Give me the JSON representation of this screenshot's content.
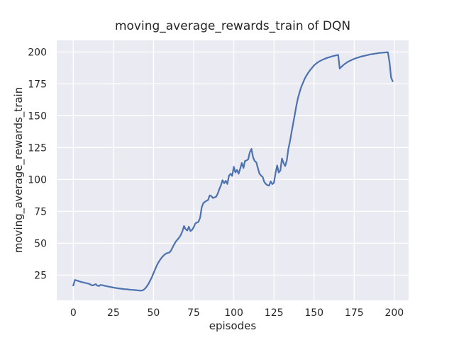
{
  "chart_data": {
    "type": "line",
    "title": "moving_average_rewards_train of DQN",
    "xlabel": "episodes",
    "ylabel": "moving_average_rewards_train",
    "xlim": [
      -10.3,
      208.9
    ],
    "ylim": [
      5.2,
      209.1
    ],
    "xticks": [
      0,
      25,
      50,
      75,
      100,
      125,
      150,
      175,
      200
    ],
    "yticks": [
      25,
      50,
      75,
      100,
      125,
      150,
      175,
      200
    ],
    "grid": true,
    "legend": false,
    "style": {
      "figure_bg": "#ffffff",
      "axes_bg": "#eaeaf2",
      "grid_color": "#ffffff",
      "line_color": "#4c72b0",
      "text_color": "#262626"
    },
    "series": [
      {
        "name": "moving_average_rewards_train",
        "points": [
          [
            0,
            16.8
          ],
          [
            1,
            21.2
          ],
          [
            2,
            20.8
          ],
          [
            3,
            20.4
          ],
          [
            4,
            20.0
          ],
          [
            5,
            19.6
          ],
          [
            6,
            19.3
          ],
          [
            7,
            19.0
          ],
          [
            8,
            18.7
          ],
          [
            9,
            18.4
          ],
          [
            10,
            18.1
          ],
          [
            11,
            17.3
          ],
          [
            12,
            16.9
          ],
          [
            13,
            17.3
          ],
          [
            14,
            17.9
          ],
          [
            15,
            16.7
          ],
          [
            16,
            16.4
          ],
          [
            17,
            17.3
          ],
          [
            18,
            17.1
          ],
          [
            19,
            16.8
          ],
          [
            20,
            16.5
          ],
          [
            21,
            16.2
          ],
          [
            22,
            16.0
          ],
          [
            23,
            15.7
          ],
          [
            24,
            15.5
          ],
          [
            25,
            15.2
          ],
          [
            26,
            15.0
          ],
          [
            27,
            14.8
          ],
          [
            28,
            14.6
          ],
          [
            29,
            14.4
          ],
          [
            30,
            14.3
          ],
          [
            31,
            14.1
          ],
          [
            32,
            14.0
          ],
          [
            33,
            13.9
          ],
          [
            34,
            13.8
          ],
          [
            35,
            13.6
          ],
          [
            36,
            13.5
          ],
          [
            37,
            13.4
          ],
          [
            38,
            13.3
          ],
          [
            39,
            13.2
          ],
          [
            40,
            13.1
          ],
          [
            41,
            12.9
          ],
          [
            42,
            12.8
          ],
          [
            43,
            13.0
          ],
          [
            44,
            13.6
          ],
          [
            45,
            14.8
          ],
          [
            46,
            16.5
          ],
          [
            47,
            18.5
          ],
          [
            48,
            21.0
          ],
          [
            49,
            23.5
          ],
          [
            50,
            26.5
          ],
          [
            51,
            29.5
          ],
          [
            52,
            32.5
          ],
          [
            53,
            34.8
          ],
          [
            54,
            36.8
          ],
          [
            55,
            38.6
          ],
          [
            56,
            40.0
          ],
          [
            57,
            41.2
          ],
          [
            58,
            42.0
          ],
          [
            59,
            42.5
          ],
          [
            60,
            42.8
          ],
          [
            61,
            44.5
          ],
          [
            62,
            47.0
          ],
          [
            63,
            49.5
          ],
          [
            64,
            51.5
          ],
          [
            65,
            53.0
          ],
          [
            66,
            54.5
          ],
          [
            67,
            56.5
          ],
          [
            68,
            59.5
          ],
          [
            69,
            63.5
          ],
          [
            70,
            61.0
          ],
          [
            71,
            60.0
          ],
          [
            72,
            63.0
          ],
          [
            73,
            59.5
          ],
          [
            74,
            60.5
          ],
          [
            75,
            62.5
          ],
          [
            76,
            65.5
          ],
          [
            77,
            66.2
          ],
          [
            78,
            66.8
          ],
          [
            79,
            70.0
          ],
          [
            80,
            78.0
          ],
          [
            81,
            81.5
          ],
          [
            82,
            82.5
          ],
          [
            83,
            83.2
          ],
          [
            84,
            84.0
          ],
          [
            85,
            87.5
          ],
          [
            86,
            87.0
          ],
          [
            87,
            85.5
          ],
          [
            88,
            86.0
          ],
          [
            89,
            86.5
          ],
          [
            90,
            89.0
          ],
          [
            91,
            92.5
          ],
          [
            92,
            95.5
          ],
          [
            93,
            99.5
          ],
          [
            94,
            97.0
          ],
          [
            95,
            99.0
          ],
          [
            96,
            96.5
          ],
          [
            97,
            103.0
          ],
          [
            98,
            104.5
          ],
          [
            99,
            102.8
          ],
          [
            100,
            110.0
          ],
          [
            101,
            105.5
          ],
          [
            102,
            107.5
          ],
          [
            103,
            104.5
          ],
          [
            104,
            108.5
          ],
          [
            105,
            113.0
          ],
          [
            106,
            109.0
          ],
          [
            107,
            114.5
          ],
          [
            108,
            115.0
          ],
          [
            109,
            115.8
          ],
          [
            110,
            121.5
          ],
          [
            111,
            124.0
          ],
          [
            112,
            117.5
          ],
          [
            113,
            114.5
          ],
          [
            114,
            113.5
          ],
          [
            115,
            109.0
          ],
          [
            116,
            104.5
          ],
          [
            117,
            103.0
          ],
          [
            118,
            102.0
          ],
          [
            119,
            98.0
          ],
          [
            120,
            96.5
          ],
          [
            121,
            95.5
          ],
          [
            122,
            95.2
          ],
          [
            123,
            98.5
          ],
          [
            124,
            96.3
          ],
          [
            125,
            97.5
          ],
          [
            126,
            105.0
          ],
          [
            127,
            111.0
          ],
          [
            128,
            105.5
          ],
          [
            129,
            107.0
          ],
          [
            130,
            116.5
          ],
          [
            131,
            113.0
          ],
          [
            132,
            110.5
          ],
          [
            133,
            115.0
          ],
          [
            134,
            124.0
          ],
          [
            135,
            130.0
          ],
          [
            136,
            137.0
          ],
          [
            137,
            144.0
          ],
          [
            138,
            151.0
          ],
          [
            139,
            158.0
          ],
          [
            140,
            164.0
          ],
          [
            141,
            168.5
          ],
          [
            142,
            172.5
          ],
          [
            143,
            175.5
          ],
          [
            144,
            178.5
          ],
          [
            145,
            181.0
          ],
          [
            146,
            183.0
          ],
          [
            147,
            184.8
          ],
          [
            148,
            186.5
          ],
          [
            149,
            188.0
          ],
          [
            150,
            189.5
          ],
          [
            151,
            190.6
          ],
          [
            152,
            191.6
          ],
          [
            153,
            192.4
          ],
          [
            154,
            193.1
          ],
          [
            155,
            193.7
          ],
          [
            156,
            194.3
          ],
          [
            157,
            194.8
          ],
          [
            158,
            195.3
          ],
          [
            159,
            195.7
          ],
          [
            160,
            196.1
          ],
          [
            161,
            196.5
          ],
          [
            162,
            196.8
          ],
          [
            163,
            197.1
          ],
          [
            164,
            197.4
          ],
          [
            165,
            197.7
          ],
          [
            166,
            187.0
          ],
          [
            167,
            188.3
          ],
          [
            168,
            189.5
          ],
          [
            169,
            190.5
          ],
          [
            170,
            191.4
          ],
          [
            171,
            192.2
          ],
          [
            172,
            192.9
          ],
          [
            173,
            193.5
          ],
          [
            174,
            194.1
          ],
          [
            175,
            194.6
          ],
          [
            176,
            195.1
          ],
          [
            177,
            195.5
          ],
          [
            178,
            195.9
          ],
          [
            179,
            196.3
          ],
          [
            180,
            196.6
          ],
          [
            181,
            196.9
          ],
          [
            182,
            197.2
          ],
          [
            183,
            197.5
          ],
          [
            184,
            197.8
          ],
          [
            185,
            198.1
          ],
          [
            186,
            198.3
          ],
          [
            187,
            198.5
          ],
          [
            188,
            198.7
          ],
          [
            189,
            198.9
          ],
          [
            190,
            199.1
          ],
          [
            191,
            199.3
          ],
          [
            192,
            199.4
          ],
          [
            193,
            199.5
          ],
          [
            194,
            199.6
          ],
          [
            195,
            199.7
          ],
          [
            196,
            199.8
          ],
          [
            197,
            192.0
          ],
          [
            198,
            180.0
          ],
          [
            199,
            177.0
          ]
        ]
      }
    ]
  }
}
